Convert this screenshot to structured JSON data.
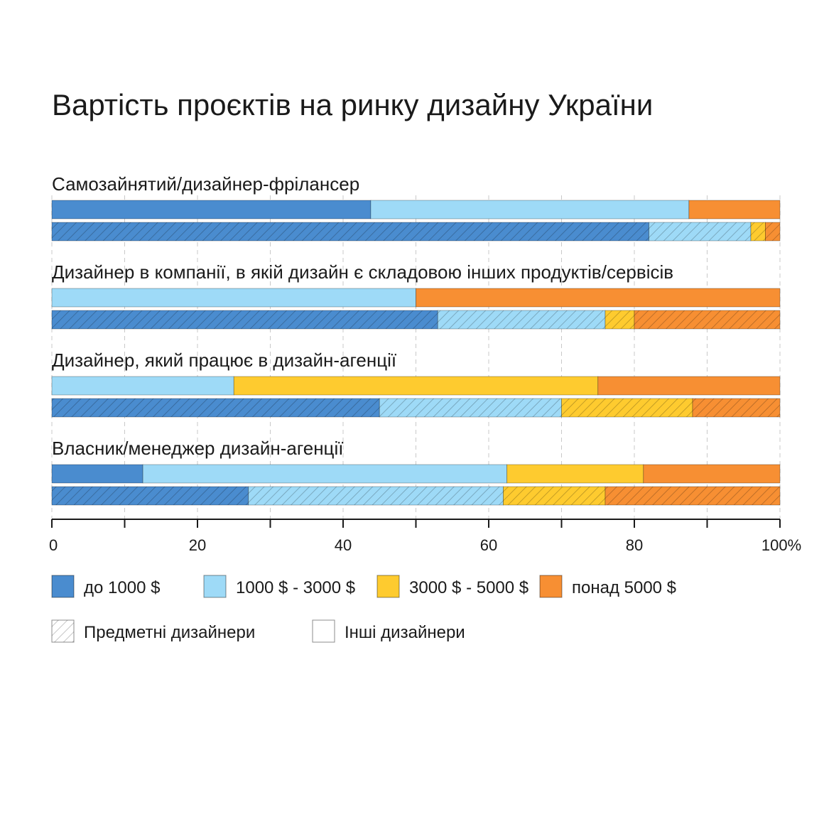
{
  "chart_data": {
    "type": "bar",
    "orientation": "horizontal",
    "stacked": true,
    "title": "Вартість проєктів на ринку дизайну України",
    "categories": [
      "Самозайнятий/дизайнер-фрілансер",
      "Дизайнер в компанії, в якій дизайн є складовою інших продуктів/сервісів",
      "Дизайнер, який працює в дизайн-агенції",
      "Власник/менеджер дизайн-агенції"
    ],
    "bar_groups": [
      "Інші дизайнери",
      "Предметні дизайнери"
    ],
    "segments": [
      {
        "name": "до 1000 $",
        "color": "#4a8ccf"
      },
      {
        "name": "1000 $ - 3000 $",
        "color": "#9edaf7"
      },
      {
        "name": "3000 $ - 5000 $",
        "color": "#fecb2f"
      },
      {
        "name": "понад 5000 $",
        "color": "#f78f33"
      }
    ],
    "values": [
      {
        "category": "Самозайнятий/дизайнер-фрілансер",
        "Інші дизайнери": [
          43.8,
          43.7,
          0,
          12.5
        ],
        "Предметні дизайнери": [
          82.0,
          14.0,
          2.0,
          2.0
        ]
      },
      {
        "category": "Дизайнер в компанії, в якій дизайн є складовою інших продуктів/сервісів",
        "Інші дизайнери": [
          0,
          50.0,
          0,
          50.0
        ],
        "Предметні дизайнери": [
          53.0,
          23.0,
          4.0,
          20.0
        ]
      },
      {
        "category": "Дизайнер, який працює в дизайн-агенції",
        "Інші дизайнери": [
          0,
          25.0,
          50.0,
          25.0
        ],
        "Предметні дизайнери": [
          45.0,
          25.0,
          18.0,
          12.0
        ]
      },
      {
        "category": "Власник/менеджер дизайн-агенції",
        "Інші дизайнери": [
          12.5,
          50.0,
          18.75,
          18.75
        ],
        "Предметні дизайнери": [
          27.0,
          35.0,
          14.0,
          24.0
        ]
      }
    ],
    "xlim": [
      0,
      100
    ],
    "xticks": [
      {
        "value": 0,
        "label": "0"
      },
      {
        "value": 20,
        "label": "20"
      },
      {
        "value": 40,
        "label": "40"
      },
      {
        "value": 60,
        "label": "60"
      },
      {
        "value": 80,
        "label": "80"
      },
      {
        "value": 100,
        "label": "100%"
      }
    ],
    "minor_ticks": [
      10,
      30,
      50,
      70,
      90
    ],
    "grid": true,
    "legend": {
      "placement": "bottom",
      "items": [
        {
          "label": "до 1000 $",
          "color": "#4a8ccf",
          "pattern": "solid"
        },
        {
          "label": "1000 $ - 3000 $",
          "color": "#9edaf7",
          "pattern": "solid"
        },
        {
          "label": "3000 $ - 5000 $",
          "color": "#fecb2f",
          "pattern": "solid"
        },
        {
          "label": "понад 5000 $",
          "color": "#f78f33",
          "pattern": "solid"
        },
        {
          "label": "Предметні дизайнери",
          "color": "#ffffff",
          "pattern": "hatched"
        },
        {
          "label": "Інші дизайнери",
          "color": "#ffffff",
          "pattern": "solid"
        }
      ]
    }
  }
}
